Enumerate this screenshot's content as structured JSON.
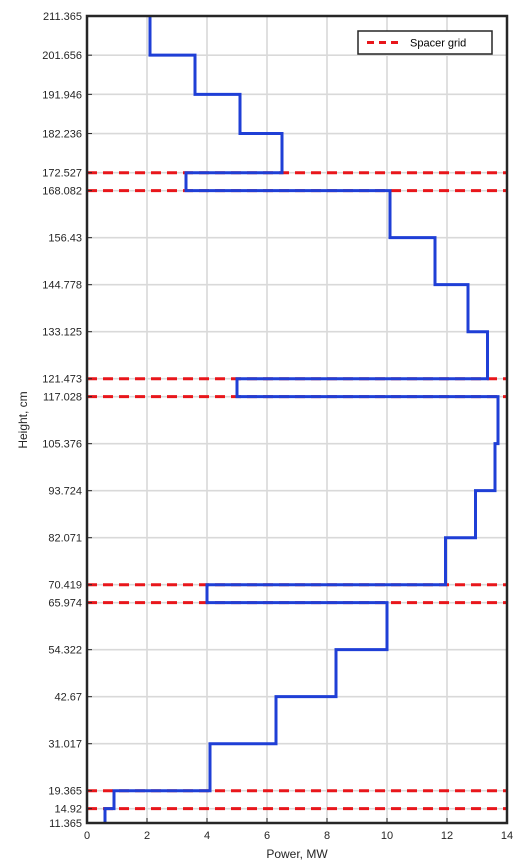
{
  "chart_data": {
    "type": "line",
    "xlabel": "Power, MW",
    "ylabel": "Height, cm",
    "xlim": [
      0,
      14
    ],
    "ylim": [
      11.365,
      211.365
    ],
    "grid": true,
    "legend_position": "top-right",
    "x_ticks": [
      0,
      2,
      4,
      6,
      8,
      10,
      12,
      14
    ],
    "x_tick_labels": [
      "0",
      "2",
      "4",
      "6",
      "8",
      "10",
      "12",
      "14"
    ],
    "y_ticks": [
      11.365,
      14.92,
      19.365,
      31.017,
      42.67,
      54.322,
      65.974,
      70.419,
      82.071,
      93.724,
      105.376,
      117.028,
      121.473,
      133.125,
      144.778,
      156.43,
      168.082,
      172.527,
      182.236,
      191.946,
      201.656,
      211.365
    ],
    "y_tick_labels": [
      "11.365",
      "14.92",
      "19.365",
      "31.017",
      "42.67",
      "54.322",
      "65.974",
      "70.419",
      "82.071",
      "93.724",
      "105.376",
      "117.028",
      "121.473",
      "133.125",
      "144.778",
      "156.43",
      "168.082",
      "172.527",
      "182.236",
      "191.946",
      "201.656",
      "211.365"
    ],
    "series": [
      {
        "color": "#1f3fd6",
        "style": "step",
        "segments": [
          {
            "y0": 11.365,
            "y1": 14.92,
            "power": 0.6
          },
          {
            "y0": 14.92,
            "y1": 19.365,
            "power": 0.9
          },
          {
            "y0": 19.365,
            "y1": 31.017,
            "power": 4.1
          },
          {
            "y0": 31.017,
            "y1": 42.67,
            "power": 6.3
          },
          {
            "y0": 42.67,
            "y1": 54.322,
            "power": 8.3
          },
          {
            "y0": 54.322,
            "y1": 65.974,
            "power": 10.0
          },
          {
            "y0": 65.974,
            "y1": 70.419,
            "power": 4.0
          },
          {
            "y0": 70.419,
            "y1": 82.071,
            "power": 11.95
          },
          {
            "y0": 82.071,
            "y1": 93.724,
            "power": 12.95
          },
          {
            "y0": 93.724,
            "y1": 105.376,
            "power": 13.6
          },
          {
            "y0": 105.376,
            "y1": 117.028,
            "power": 13.7
          },
          {
            "y0": 117.028,
            "y1": 121.473,
            "power": 5.0
          },
          {
            "y0": 121.473,
            "y1": 133.125,
            "power": 13.35
          },
          {
            "y0": 133.125,
            "y1": 144.778,
            "power": 12.7
          },
          {
            "y0": 144.778,
            "y1": 156.43,
            "power": 11.6
          },
          {
            "y0": 156.43,
            "y1": 168.082,
            "power": 10.1
          },
          {
            "y0": 168.082,
            "y1": 172.527,
            "power": 3.3
          },
          {
            "y0": 172.527,
            "y1": 182.236,
            "power": 6.5
          },
          {
            "y0": 182.236,
            "y1": 191.946,
            "power": 5.1
          },
          {
            "y0": 191.946,
            "y1": 201.656,
            "power": 3.6
          },
          {
            "y0": 201.656,
            "y1": 211.365,
            "power": 2.1
          }
        ]
      },
      {
        "name": "Spacer grid",
        "color": "#e8161b",
        "style": "dashed",
        "y_values": [
          14.92,
          19.365,
          65.974,
          70.419,
          117.028,
          121.473,
          168.082,
          172.527
        ]
      }
    ]
  }
}
